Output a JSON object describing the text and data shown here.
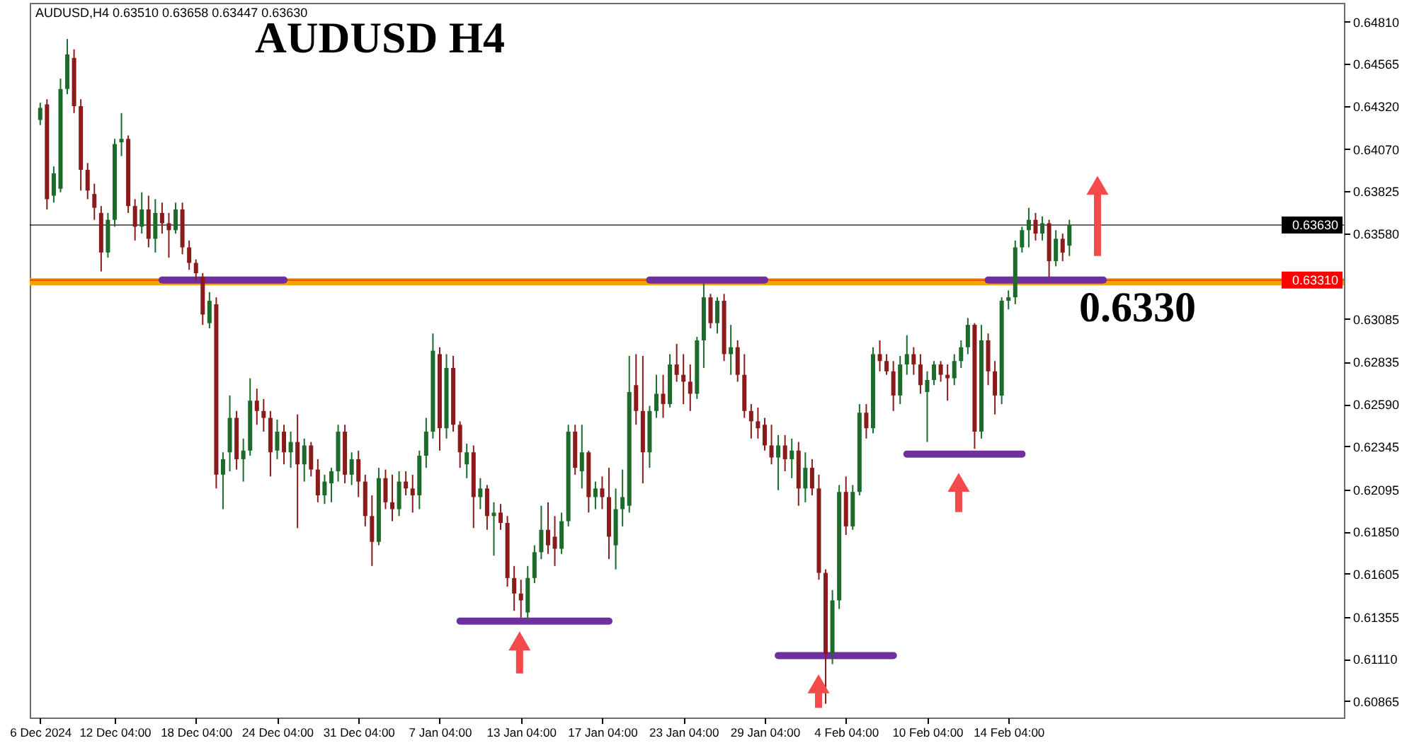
{
  "chart_data": {
    "type": "candlestick",
    "title": "AUDUSD H4",
    "annotations": [
      "AUDUSD,H4 0.63510 0.63658 0.63447 0.63630"
    ],
    "categories": [
      "6 Dec 2024",
      null,
      null,
      null,
      null,
      null,
      null,
      null,
      null,
      null,
      null,
      "12 Dec 04:00",
      null,
      null,
      null,
      null,
      null,
      null,
      null,
      null,
      null,
      null,
      null,
      "18 Dec 04:00",
      null,
      null,
      null,
      null,
      null,
      null,
      null,
      null,
      null,
      null,
      null,
      "24 Dec 04:00",
      null,
      null,
      null,
      null,
      null,
      null,
      null,
      null,
      null,
      null,
      null,
      "31 Dec 04:00",
      null,
      null,
      null,
      null,
      null,
      null,
      null,
      null,
      null,
      null,
      null,
      "7 Jan 04:00",
      null,
      null,
      null,
      null,
      null,
      null,
      null,
      null,
      null,
      null,
      null,
      "13 Jan 04:00",
      null,
      null,
      null,
      null,
      null,
      null,
      null,
      null,
      null,
      null,
      null,
      "17 Jan 04:00",
      null,
      null,
      null,
      null,
      null,
      null,
      null,
      null,
      null,
      null,
      null,
      "23 Jan 04:00",
      null,
      null,
      null,
      null,
      null,
      null,
      null,
      null,
      null,
      null,
      null,
      "29 Jan 04:00",
      null,
      null,
      null,
      null,
      null,
      null,
      null,
      null,
      null,
      null,
      null,
      "4 Feb 04:00",
      null,
      null,
      null,
      null,
      null,
      null,
      null,
      null,
      null,
      null,
      null,
      "10 Feb 04:00",
      null,
      null,
      null,
      null,
      null,
      null,
      null,
      null,
      null,
      null,
      null,
      "14 Feb 04:00",
      null,
      null,
      null,
      null,
      null,
      null,
      null,
      null,
      null,
      null,
      null,
      null,
      null,
      null,
      null,
      null,
      null,
      null,
      null,
      null,
      null,
      null,
      null,
      null,
      null,
      null,
      null,
      null,
      null,
      null,
      null,
      null,
      null,
      null,
      null,
      null,
      null,
      null,
      null,
      null,
      null,
      null,
      null,
      null,
      null,
      null,
      null,
      null
    ],
    "ohlc": [
      [
        0.6424,
        0.6434,
        0.6421,
        0.6431
      ],
      [
        0.6433,
        0.6436,
        0.6372,
        0.6378
      ],
      [
        0.638,
        0.6397,
        0.6376,
        0.6393
      ],
      [
        0.6384,
        0.6448,
        0.6382,
        0.6442
      ],
      [
        0.6442,
        0.6471,
        0.6439,
        0.6462
      ],
      [
        0.646,
        0.6465,
        0.6428,
        0.6432
      ],
      [
        0.6432,
        0.6436,
        0.6383,
        0.6395
      ],
      [
        0.6395,
        0.6399,
        0.6378,
        0.6383
      ],
      [
        0.6381,
        0.6387,
        0.6366,
        0.6373
      ],
      [
        0.637,
        0.6374,
        0.6336,
        0.6347
      ],
      [
        0.6347,
        0.637,
        0.6344,
        0.6366
      ],
      [
        0.6366,
        0.6413,
        0.6362,
        0.641
      ],
      [
        0.6411,
        0.6428,
        0.6403,
        0.6413
      ],
      [
        0.6413,
        0.6415,
        0.637,
        0.6374
      ],
      [
        0.6374,
        0.6378,
        0.6354,
        0.6362
      ],
      [
        0.6362,
        0.6382,
        0.6358,
        0.6372
      ],
      [
        0.6372,
        0.638,
        0.635,
        0.6355
      ],
      [
        0.6355,
        0.6378,
        0.6347,
        0.637
      ],
      [
        0.637,
        0.6376,
        0.6358,
        0.6364
      ],
      [
        0.6364,
        0.637,
        0.6344,
        0.636
      ],
      [
        0.636,
        0.6376,
        0.6358,
        0.6372
      ],
      [
        0.6372,
        0.6376,
        0.6346,
        0.635
      ],
      [
        0.635,
        0.6354,
        0.6337,
        0.6341
      ],
      [
        0.6341,
        0.6343,
        0.6331,
        0.6335
      ],
      [
        0.6333,
        0.6335,
        0.6305,
        0.6311
      ],
      [
        0.6306,
        0.6324,
        0.6303,
        0.6319
      ],
      [
        0.6317,
        0.6321,
        0.621,
        0.6218
      ],
      [
        0.6218,
        0.6231,
        0.6198,
        0.6227
      ],
      [
        0.6231,
        0.6264,
        0.622,
        0.6251
      ],
      [
        0.6251,
        0.6255,
        0.6221,
        0.6227
      ],
      [
        0.6227,
        0.6239,
        0.6214,
        0.6232
      ],
      [
        0.6232,
        0.6274,
        0.6229,
        0.6261
      ],
      [
        0.6261,
        0.6268,
        0.6247,
        0.6255
      ],
      [
        0.6255,
        0.6262,
        0.6243,
        0.6251
      ],
      [
        0.6251,
        0.6255,
        0.6217,
        0.6231
      ],
      [
        0.6232,
        0.625,
        0.6227,
        0.6243
      ],
      [
        0.6243,
        0.6247,
        0.6224,
        0.6231
      ],
      [
        0.6231,
        0.6243,
        0.6222,
        0.6237
      ],
      [
        0.6237,
        0.6253,
        0.6187,
        0.6224
      ],
      [
        0.6224,
        0.6239,
        0.6214,
        0.6235
      ],
      [
        0.6235,
        0.6237,
        0.6217,
        0.6221
      ],
      [
        0.6221,
        0.6227,
        0.6202,
        0.6206
      ],
      [
        0.6206,
        0.6218,
        0.6201,
        0.6214
      ],
      [
        0.6213,
        0.6222,
        0.6202,
        0.622
      ],
      [
        0.622,
        0.6247,
        0.6214,
        0.6243
      ],
      [
        0.6243,
        0.6247,
        0.6213,
        0.6218
      ],
      [
        0.6218,
        0.6231,
        0.6212,
        0.6227
      ],
      [
        0.6227,
        0.6232,
        0.6205,
        0.6214
      ],
      [
        0.6214,
        0.6218,
        0.6188,
        0.6194
      ],
      [
        0.6194,
        0.6206,
        0.6165,
        0.6179
      ],
      [
        0.6179,
        0.6222,
        0.6177,
        0.6216
      ],
      [
        0.6216,
        0.6221,
        0.6198,
        0.6202
      ],
      [
        0.6202,
        0.6218,
        0.6191,
        0.6198
      ],
      [
        0.6198,
        0.622,
        0.6194,
        0.6214
      ],
      [
        0.6214,
        0.622,
        0.6206,
        0.621
      ],
      [
        0.621,
        0.6218,
        0.6196,
        0.6206
      ],
      [
        0.6206,
        0.6232,
        0.6198,
        0.6229
      ],
      [
        0.6229,
        0.6251,
        0.6222,
        0.6243
      ],
      [
        0.6243,
        0.63,
        0.6239,
        0.629
      ],
      [
        0.6288,
        0.6292,
        0.6232,
        0.6245
      ],
      [
        0.6245,
        0.6288,
        0.6239,
        0.628
      ],
      [
        0.628,
        0.6287,
        0.6243,
        0.6247
      ],
      [
        0.6247,
        0.6249,
        0.6222,
        0.6231
      ],
      [
        0.6224,
        0.6236,
        0.6216,
        0.6231
      ],
      [
        0.6231,
        0.6235,
        0.6187,
        0.6205
      ],
      [
        0.6205,
        0.6216,
        0.6198,
        0.621
      ],
      [
        0.621,
        0.6212,
        0.6186,
        0.6194
      ],
      [
        0.6194,
        0.6202,
        0.6171,
        0.6196
      ],
      [
        0.6196,
        0.6201,
        0.6186,
        0.619
      ],
      [
        0.619,
        0.6194,
        0.6153,
        0.6158
      ],
      [
        0.6158,
        0.6165,
        0.6139,
        0.6149
      ],
      [
        0.6149,
        0.6157,
        0.6135,
        0.6145
      ],
      [
        0.6138,
        0.6165,
        0.6134,
        0.6158
      ],
      [
        0.6158,
        0.6177,
        0.6155,
        0.6173
      ],
      [
        0.6173,
        0.62,
        0.6169,
        0.6186
      ],
      [
        0.6186,
        0.6202,
        0.6172,
        0.6177
      ],
      [
        0.6182,
        0.6194,
        0.6165,
        0.6175
      ],
      [
        0.6175,
        0.6196,
        0.6172,
        0.6191
      ],
      [
        0.6191,
        0.6247,
        0.6188,
        0.6243
      ],
      [
        0.6243,
        0.6247,
        0.6218,
        0.6222
      ],
      [
        0.622,
        0.6247,
        0.621,
        0.6231
      ],
      [
        0.6231,
        0.6232,
        0.6196,
        0.6205
      ],
      [
        0.6205,
        0.6214,
        0.6198,
        0.621
      ],
      [
        0.621,
        0.6217,
        0.6198,
        0.6205
      ],
      [
        0.6205,
        0.6222,
        0.6169,
        0.6182
      ],
      [
        0.6177,
        0.621,
        0.6163,
        0.6198
      ],
      [
        0.6198,
        0.6221,
        0.6188,
        0.6205
      ],
      [
        0.62,
        0.6287,
        0.6196,
        0.6266
      ],
      [
        0.627,
        0.6288,
        0.6247,
        0.6255
      ],
      [
        0.6255,
        0.6287,
        0.6213,
        0.6231
      ],
      [
        0.6231,
        0.6258,
        0.6222,
        0.6255
      ],
      [
        0.6255,
        0.6276,
        0.6251,
        0.6265
      ],
      [
        0.6265,
        0.6276,
        0.6251,
        0.6259
      ],
      [
        0.6259,
        0.6288,
        0.6257,
        0.6282
      ],
      [
        0.6282,
        0.6294,
        0.6272,
        0.6276
      ],
      [
        0.6276,
        0.6288,
        0.6259,
        0.6272
      ],
      [
        0.6272,
        0.6282,
        0.6255,
        0.6265
      ],
      [
        0.6265,
        0.6298,
        0.6262,
        0.6296
      ],
      [
        0.6296,
        0.6329,
        0.628,
        0.6321
      ],
      [
        0.6321,
        0.6323,
        0.6303,
        0.6306
      ],
      [
        0.6306,
        0.6321,
        0.63,
        0.6319
      ],
      [
        0.6319,
        0.6323,
        0.6284,
        0.6288
      ],
      [
        0.6288,
        0.6305,
        0.6276,
        0.6292
      ],
      [
        0.6292,
        0.6296,
        0.6272,
        0.6276
      ],
      [
        0.6276,
        0.6288,
        0.6251,
        0.6255
      ],
      [
        0.6255,
        0.6259,
        0.6239,
        0.6249
      ],
      [
        0.6249,
        0.6257,
        0.6239,
        0.6245
      ],
      [
        0.6247,
        0.6251,
        0.6232,
        0.6235
      ],
      [
        0.6235,
        0.6247,
        0.6224,
        0.6228
      ],
      [
        0.6228,
        0.6241,
        0.6209,
        0.6235
      ],
      [
        0.6235,
        0.6241,
        0.622,
        0.6227
      ],
      [
        0.6227,
        0.6239,
        0.6216,
        0.6232
      ],
      [
        0.6232,
        0.6237,
        0.62,
        0.621
      ],
      [
        0.621,
        0.6231,
        0.6202,
        0.6222
      ],
      [
        0.6222,
        0.6227,
        0.6206,
        0.621
      ],
      [
        0.621,
        0.6218,
        0.6157,
        0.6161
      ],
      [
        0.6161,
        0.6163,
        0.6085,
        0.6114
      ],
      [
        0.6114,
        0.6151,
        0.6108,
        0.6145
      ],
      [
        0.6145,
        0.6212,
        0.614,
        0.6208
      ],
      [
        0.6208,
        0.6217,
        0.6183,
        0.6188
      ],
      [
        0.6188,
        0.6212,
        0.6186,
        0.6208
      ],
      [
        0.6208,
        0.6259,
        0.6206,
        0.6254
      ],
      [
        0.6254,
        0.6259,
        0.6239,
        0.6245
      ],
      [
        0.6245,
        0.6292,
        0.6242,
        0.6288
      ],
      [
        0.6288,
        0.6296,
        0.6278,
        0.6284
      ],
      [
        0.6284,
        0.6288,
        0.6276,
        0.6278
      ],
      [
        0.6278,
        0.6284,
        0.6255,
        0.6264
      ],
      [
        0.6264,
        0.6287,
        0.6259,
        0.6282
      ],
      [
        0.6282,
        0.6299,
        0.6276,
        0.6288
      ],
      [
        0.6288,
        0.6292,
        0.6276,
        0.6282
      ],
      [
        0.6282,
        0.6288,
        0.6265,
        0.627
      ],
      [
        0.6266,
        0.6278,
        0.6237,
        0.6273
      ],
      [
        0.6273,
        0.6284,
        0.627,
        0.6282
      ],
      [
        0.6282,
        0.6284,
        0.6272,
        0.6276
      ],
      [
        0.6276,
        0.6282,
        0.6261,
        0.6274
      ],
      [
        0.6274,
        0.6288,
        0.627,
        0.6284
      ],
      [
        0.6284,
        0.6296,
        0.628,
        0.6292
      ],
      [
        0.6292,
        0.6309,
        0.6288,
        0.6305
      ],
      [
        0.6305,
        0.6306,
        0.6233,
        0.6243
      ],
      [
        0.6243,
        0.6305,
        0.6239,
        0.6296
      ],
      [
        0.6296,
        0.63,
        0.627,
        0.6278
      ],
      [
        0.6278,
        0.6284,
        0.6253,
        0.6264
      ],
      [
        0.6264,
        0.6321,
        0.6259,
        0.6319
      ],
      [
        0.6319,
        0.6325,
        0.6314,
        0.6321
      ],
      [
        0.6321,
        0.6354,
        0.6317,
        0.635
      ],
      [
        0.635,
        0.6362,
        0.6347,
        0.636
      ],
      [
        0.636,
        0.6373,
        0.635,
        0.6366
      ],
      [
        0.6366,
        0.637,
        0.6354,
        0.6358
      ],
      [
        0.6358,
        0.6368,
        0.6354,
        0.6364
      ],
      [
        0.6364,
        0.6366,
        0.6333,
        0.6342
      ],
      [
        0.6342,
        0.636,
        0.6339,
        0.6355
      ],
      [
        0.6355,
        0.6358,
        0.6342,
        0.6347
      ],
      [
        0.6351,
        0.6366,
        0.6345,
        0.6363
      ],
      null,
      null,
      null,
      null,
      null,
      null,
      null,
      null,
      null,
      null,
      null,
      null,
      null,
      null,
      null,
      null,
      null,
      null,
      null,
      null,
      null,
      null,
      null,
      null,
      null,
      null,
      null,
      null,
      null,
      null,
      null,
      null,
      null,
      null,
      null,
      null,
      null,
      null,
      null
    ],
    "colors": [
      "#1d6b2b",
      "#8b1a1a",
      "#1d6b2b",
      "#1d6b2b",
      "#1d6b2b",
      "#8b1a1a",
      "#8b1a1a",
      "#8b1a1a",
      "#8b1a1a",
      "#8b1a1a",
      "#1d6b2b",
      "#1d6b2b",
      "#1d6b2b",
      "#8b1a1a",
      "#8b1a1a",
      "#1d6b2b",
      "#8b1a1a",
      "#1d6b2b",
      "#8b1a1a",
      "#8b1a1a",
      "#1d6b2b",
      "#8b1a1a",
      "#8b1a1a",
      "#8b1a1a",
      "#8b1a1a",
      "#1d6b2b",
      "#8b1a1a",
      "#1d6b2b",
      "#1d6b2b",
      "#8b1a1a",
      "#1d6b2b",
      "#1d6b2b",
      "#8b1a1a",
      "#8b1a1a",
      "#8b1a1a",
      "#1d6b2b",
      "#8b1a1a",
      "#1d6b2b",
      "#8b1a1a",
      "#1d6b2b",
      "#8b1a1a",
      "#8b1a1a",
      "#1d6b2b",
      "#1d6b2b",
      "#1d6b2b",
      "#8b1a1a",
      "#1d6b2b",
      "#8b1a1a",
      "#8b1a1a",
      "#8b1a1a",
      "#1d6b2b",
      "#8b1a1a",
      "#8b1a1a",
      "#1d6b2b",
      "#8b1a1a",
      "#8b1a1a",
      "#1d6b2b",
      "#1d6b2b",
      "#1d6b2b",
      "#8b1a1a",
      "#1d6b2b",
      "#8b1a1a",
      "#8b1a1a",
      "#1d6b2b",
      "#8b1a1a",
      "#1d6b2b",
      "#8b1a1a",
      "#1d6b2b",
      "#8b1a1a",
      "#8b1a1a",
      "#8b1a1a",
      "#8b1a1a",
      "#1d6b2b",
      "#1d6b2b",
      "#1d6b2b",
      "#8b1a1a",
      "#8b1a1a",
      "#1d6b2b",
      "#1d6b2b",
      "#8b1a1a",
      "#1d6b2b",
      "#8b1a1a",
      "#1d6b2b",
      "#8b1a1a",
      "#8b1a1a",
      "#1d6b2b",
      "#1d6b2b",
      "#1d6b2b",
      "#8b1a1a",
      "#8b1a1a",
      "#1d6b2b",
      "#1d6b2b",
      "#8b1a1a",
      "#1d6b2b",
      "#8b1a1a",
      "#8b1a1a",
      "#8b1a1a",
      "#1d6b2b",
      "#1d6b2b",
      "#8b1a1a",
      "#1d6b2b",
      "#8b1a1a",
      "#1d6b2b",
      "#8b1a1a",
      "#8b1a1a",
      "#8b1a1a",
      "#8b1a1a",
      "#8b1a1a",
      "#8b1a1a",
      "#1d6b2b",
      "#8b1a1a",
      "#1d6b2b",
      "#8b1a1a",
      "#1d6b2b",
      "#8b1a1a",
      "#8b1a1a",
      "#8b1a1a",
      "#1d6b2b",
      "#1d6b2b",
      "#8b1a1a",
      "#1d6b2b",
      "#1d6b2b",
      "#8b1a1a",
      "#1d6b2b",
      "#8b1a1a",
      "#8b1a1a",
      "#8b1a1a",
      "#1d6b2b",
      "#1d6b2b",
      "#8b1a1a",
      "#8b1a1a",
      "#1d6b2b",
      "#1d6b2b",
      "#8b1a1a",
      "#8b1a1a",
      "#1d6b2b",
      "#1d6b2b",
      "#1d6b2b",
      "#8b1a1a",
      "#1d6b2b",
      "#8b1a1a",
      "#8b1a1a",
      "#1d6b2b",
      "#1d6b2b",
      "#1d6b2b",
      "#1d6b2b",
      "#1d6b2b",
      "#8b1a1a",
      "#1d6b2b",
      "#8b1a1a",
      "#1d6b2b",
      "#8b1a1a",
      "#1d6b2b",
      null,
      null,
      null,
      null,
      null,
      null,
      null,
      null,
      null,
      null,
      null,
      null,
      null,
      null,
      null,
      null,
      null,
      null,
      null,
      null,
      null,
      null,
      null,
      null,
      null,
      null,
      null,
      null,
      null,
      null,
      null,
      null,
      null,
      null,
      null,
      null,
      null,
      null,
      null
    ],
    "ylim": [
      0.6077,
      0.6492
    ],
    "yticks": [
      {
        "value": 0.6481,
        "label": "0.64810"
      },
      0.64565,
      {
        "value": 0.6432,
        "label": "0.64320"
      },
      {
        "value": 0.6407,
        "label": "0.64070"
      },
      0.63825,
      {
        "value": 0.6358,
        "label": "0.63580"
      },
      0.63085,
      0.62835,
      {
        "value": 0.6259,
        "label": "0.62590"
      },
      0.62345,
      0.62095,
      {
        "value": 0.6185,
        "label": "0.61850"
      },
      0.61605,
      0.61355,
      {
        "value": 0.6111,
        "label": "0.61110"
      },
      0.60865
    ],
    "ref_lines": [
      {
        "axis": "y",
        "value": 0.633,
        "label": "0.6330",
        "color": "#f5a300"
      },
      {
        "axis": "y",
        "value": 0.6363,
        "label": "0.63630",
        "color": "#000000"
      },
      {
        "axis": "y",
        "value": 0.6331,
        "label": "0.63310",
        "color": "#ff0000"
      }
    ],
    "series": [
      {
        "type": "line",
        "color": "#6f2f9f",
        "values": [
          null,
          null,
          null,
          null,
          null,
          null,
          null,
          null,
          null,
          null,
          null,
          null,
          null,
          null,
          null,
          null,
          null,
          null,
          0.6331,
          0.6331,
          0.6331,
          0.6331,
          0.6331,
          0.6331,
          0.6331,
          0.6331,
          0.6331,
          0.6331,
          0.6331,
          0.6331,
          0.6331,
          0.6331,
          0.6331,
          0.6331,
          0.6331,
          0.6331,
          0.6331,
          null,
          null,
          null,
          null,
          null,
          null,
          null,
          null,
          null,
          null,
          null,
          null,
          null,
          null,
          null,
          null,
          null,
          null,
          null,
          null,
          null,
          null,
          null,
          null,
          null,
          null,
          null,
          null,
          null,
          null,
          null,
          null,
          null,
          null,
          null,
          null,
          null,
          null,
          null,
          null,
          null,
          null,
          null,
          null,
          null,
          null,
          null,
          null,
          null,
          null,
          null,
          null,
          null,
          null,
          null,
          null,
          null,
          null,
          null,
          null,
          null,
          null,
          null,
          null,
          null,
          null,
          null,
          null,
          null,
          null,
          null,
          null,
          null,
          null,
          null,
          null,
          null,
          null,
          null,
          null,
          null,
          null,
          null,
          null,
          null,
          null,
          null,
          null,
          null,
          null,
          null,
          null,
          null,
          null,
          null,
          null,
          null,
          null,
          null,
          null,
          null,
          null,
          null,
          null,
          null,
          null,
          null,
          null,
          null,
          null,
          null,
          null,
          null,
          null,
          null,
          null,
          null,
          null,
          null,
          null,
          null,
          null,
          null,
          null,
          null,
          null,
          null,
          null,
          null,
          null,
          null,
          null,
          null,
          null,
          null,
          null,
          null,
          null,
          null,
          null,
          null,
          null,
          null,
          null,
          null,
          null,
          null,
          null,
          null,
          null,
          null,
          null,
          null,
          null,
          null
        ]
      },
      {
        "type": "line",
        "color": "#6f2f9f",
        "values": [
          null,
          null,
          null,
          null,
          null,
          null,
          null,
          null,
          null,
          null,
          null,
          null,
          null,
          null,
          null,
          null,
          null,
          null,
          null,
          null,
          null,
          null,
          null,
          null,
          null,
          null,
          null,
          null,
          null,
          null,
          null,
          null,
          null,
          null,
          null,
          null,
          null,
          null,
          null,
          null,
          null,
          null,
          null,
          null,
          null,
          null,
          null,
          null,
          null,
          null,
          null,
          null,
          null,
          null,
          null,
          null,
          null,
          null,
          null,
          null,
          null,
          null,
          null,
          null,
          null,
          null,
          null,
          null,
          null,
          null,
          null,
          null,
          null,
          null,
          null,
          null,
          null,
          null,
          null,
          null,
          null,
          null,
          null,
          null,
          null,
          null,
          null,
          null,
          null,
          null,
          0.6331,
          0.6331,
          0.6331,
          0.6331,
          0.6331,
          0.6331,
          0.6331,
          0.6331,
          0.6331,
          0.6331,
          0.6331,
          0.6331,
          0.6331,
          0.6331,
          0.6331,
          0.6331,
          0.6331,
          0.6331,
          null,
          null,
          null,
          null,
          null,
          null,
          null,
          null,
          null,
          null,
          null,
          null,
          null,
          null,
          null,
          null,
          null,
          null,
          null,
          null,
          null,
          null,
          null,
          null,
          null,
          null,
          null,
          null,
          null,
          null,
          null,
          null,
          null,
          null,
          null,
          null,
          null,
          null,
          null,
          null,
          null,
          null,
          null,
          null,
          null,
          null,
          null,
          null,
          null,
          null,
          null,
          null,
          null,
          null,
          null,
          null,
          null,
          null,
          null,
          null,
          null,
          null,
          null,
          null,
          null,
          null,
          null,
          null,
          null,
          null,
          null,
          null,
          null,
          null,
          null,
          null,
          null,
          null,
          null,
          null,
          null,
          null,
          null,
          null
        ]
      },
      {
        "type": "line",
        "color": "#6f2f9f",
        "values": [
          null,
          null,
          null,
          null,
          null,
          null,
          null,
          null,
          null,
          null,
          null,
          null,
          null,
          null,
          null,
          null,
          null,
          null,
          null,
          null,
          null,
          null,
          null,
          null,
          null,
          null,
          null,
          null,
          null,
          null,
          null,
          null,
          null,
          null,
          null,
          null,
          null,
          null,
          null,
          null,
          null,
          null,
          null,
          null,
          null,
          null,
          null,
          null,
          null,
          null,
          null,
          null,
          null,
          null,
          null,
          null,
          null,
          null,
          null,
          null,
          null,
          null,
          null,
          null,
          null,
          null,
          null,
          null,
          null,
          null,
          null,
          null,
          null,
          null,
          null,
          null,
          null,
          null,
          null,
          null,
          null,
          null,
          null,
          null,
          null,
          null,
          null,
          null,
          null,
          null,
          null,
          null,
          null,
          null,
          null,
          null,
          null,
          null,
          null,
          null,
          null,
          null,
          null,
          null,
          null,
          null,
          null,
          null,
          null,
          null,
          null,
          null,
          null,
          null,
          null,
          null,
          null,
          null,
          null,
          null,
          null,
          null,
          null,
          null,
          null,
          null,
          null,
          null,
          null,
          null,
          null,
          null,
          null,
          null,
          null,
          null,
          null,
          null,
          null,
          null,
          0.6331,
          0.6331,
          0.6331,
          0.6331,
          0.6331,
          0.6331,
          0.6331,
          0.6331,
          0.6331,
          0.6331,
          0.6331,
          0.6331,
          0.6331,
          0.6331,
          0.6331,
          0.6331,
          0.6331,
          0.6331,
          null,
          null,
          null,
          null,
          null,
          null,
          null,
          null,
          null,
          null,
          null,
          null,
          null,
          null,
          null,
          null,
          null,
          null,
          null,
          null,
          null,
          null,
          null,
          null,
          null,
          null,
          null,
          null,
          null,
          null,
          null,
          null,
          null,
          null
        ]
      },
      {
        "type": "line",
        "color": "#6f2f9f",
        "values": [
          null,
          null,
          null,
          null,
          null,
          null,
          null,
          null,
          null,
          null,
          null,
          null,
          null,
          null,
          null,
          null,
          null,
          null,
          null,
          null,
          null,
          null,
          null,
          null,
          null,
          null,
          null,
          null,
          null,
          null,
          null,
          null,
          null,
          null,
          null,
          null,
          null,
          null,
          null,
          null,
          null,
          null,
          null,
          null,
          null,
          null,
          null,
          null,
          null,
          null,
          null,
          null,
          null,
          null,
          null,
          null,
          null,
          null,
          null,
          null,
          null,
          null,
          0.6133,
          0.6133,
          0.6133,
          0.6133,
          0.6133,
          0.6133,
          0.6133,
          0.6133,
          0.6133,
          0.6133,
          0.6133,
          0.6133,
          0.6133,
          0.6133,
          0.6133,
          0.6133,
          0.6133,
          0.6133,
          0.6133,
          0.6133,
          0.6133,
          0.6133,
          0.6133,
          null,
          null,
          null,
          null,
          null,
          null,
          null,
          null,
          null,
          null,
          null,
          null,
          null,
          null,
          null,
          null,
          null,
          null,
          null,
          null,
          null,
          null,
          null,
          null,
          null,
          null,
          null,
          null,
          null,
          null,
          null,
          null,
          null,
          null,
          null,
          null,
          null,
          null,
          null,
          null,
          null,
          null,
          null,
          null,
          null,
          null,
          null,
          null,
          null,
          null,
          null,
          null,
          null,
          null,
          null,
          null,
          null,
          null,
          null,
          null,
          null,
          null,
          null,
          null,
          null,
          null,
          null,
          null,
          null,
          null,
          null,
          null,
          null,
          null,
          null,
          null,
          null,
          null,
          null,
          null,
          null,
          null,
          null,
          null,
          null,
          null,
          null,
          null,
          null,
          null,
          null,
          null,
          null,
          null,
          null,
          null,
          null,
          null,
          null,
          null,
          null,
          null,
          null,
          null,
          null,
          null,
          null
        ]
      },
      {
        "type": "line",
        "color": "#6f2f9f",
        "values": [
          null,
          null,
          null,
          null,
          null,
          null,
          null,
          null,
          null,
          null,
          null,
          null,
          null,
          null,
          null,
          null,
          null,
          null,
          null,
          null,
          null,
          null,
          null,
          null,
          null,
          null,
          null,
          null,
          null,
          null,
          null,
          null,
          null,
          null,
          null,
          null,
          null,
          null,
          null,
          null,
          null,
          null,
          null,
          null,
          null,
          null,
          null,
          null,
          null,
          null,
          null,
          null,
          null,
          null,
          null,
          null,
          null,
          null,
          null,
          null,
          null,
          null,
          null,
          null,
          null,
          null,
          null,
          null,
          null,
          null,
          null,
          null,
          null,
          null,
          null,
          null,
          null,
          null,
          null,
          null,
          null,
          null,
          null,
          null,
          null,
          null,
          null,
          null,
          null,
          null,
          null,
          null,
          null,
          null,
          null,
          null,
          null,
          null,
          null,
          null,
          null,
          null,
          null,
          null,
          null,
          null,
          null,
          null,
          null,
          0.6113,
          0.6113,
          0.6113,
          0.6113,
          0.6113,
          0.6113,
          0.6113,
          0.6113,
          0.6113,
          0.6113,
          0.6113,
          0.6113,
          0.6113,
          0.6113,
          0.6113,
          0.6113,
          0.6113,
          0.6113,
          null,
          null,
          null,
          null,
          null,
          null,
          null,
          null,
          null,
          null,
          null,
          null,
          null,
          null,
          null,
          null,
          null,
          null,
          null,
          null,
          null,
          null,
          null,
          null,
          null,
          null,
          null,
          null,
          null,
          null,
          null,
          null,
          null,
          null,
          null,
          null,
          null,
          null,
          null,
          null,
          null,
          null,
          null,
          null,
          null,
          null,
          null,
          null,
          null,
          null,
          null,
          null,
          null,
          null,
          null,
          null,
          null,
          null,
          null,
          null,
          null,
          null,
          null,
          null,
          null
        ]
      },
      {
        "type": "line",
        "color": "#6f2f9f",
        "values": [
          null,
          null,
          null,
          null,
          null,
          null,
          null,
          null,
          null,
          null,
          null,
          null,
          null,
          null,
          null,
          null,
          null,
          null,
          null,
          null,
          null,
          null,
          null,
          null,
          null,
          null,
          null,
          null,
          null,
          null,
          null,
          null,
          null,
          null,
          null,
          null,
          null,
          null,
          null,
          null,
          null,
          null,
          null,
          null,
          null,
          null,
          null,
          null,
          null,
          null,
          null,
          null,
          null,
          null,
          null,
          null,
          null,
          null,
          null,
          null,
          null,
          null,
          null,
          null,
          null,
          null,
          null,
          null,
          null,
          null,
          null,
          null,
          null,
          null,
          null,
          null,
          null,
          null,
          null,
          null,
          null,
          null,
          null,
          null,
          null,
          null,
          null,
          null,
          null,
          null,
          null,
          null,
          null,
          null,
          null,
          null,
          null,
          null,
          null,
          null,
          null,
          null,
          null,
          null,
          null,
          null,
          null,
          null,
          null,
          null,
          null,
          null,
          null,
          null,
          null,
          null,
          null,
          null,
          null,
          null,
          null,
          null,
          null,
          null,
          null,
          null,
          null,
          null,
          0.623,
          0.623,
          0.623,
          0.623,
          0.623,
          0.623,
          0.623,
          0.623,
          0.623,
          0.623,
          0.623,
          0.623,
          0.623,
          0.623,
          0.623,
          0.623,
          0.623,
          0.623,
          null,
          null,
          null,
          null,
          null,
          null,
          null,
          null,
          null,
          null,
          null,
          null,
          null,
          null,
          null,
          null,
          null,
          null,
          null,
          null,
          null,
          null,
          null,
          null,
          null,
          null,
          null,
          null,
          null,
          null,
          null,
          null,
          null,
          null,
          null,
          null,
          null,
          null,
          null,
          null,
          null,
          null,
          null,
          null,
          null,
          null
        ]
      }
    ]
  }
}
